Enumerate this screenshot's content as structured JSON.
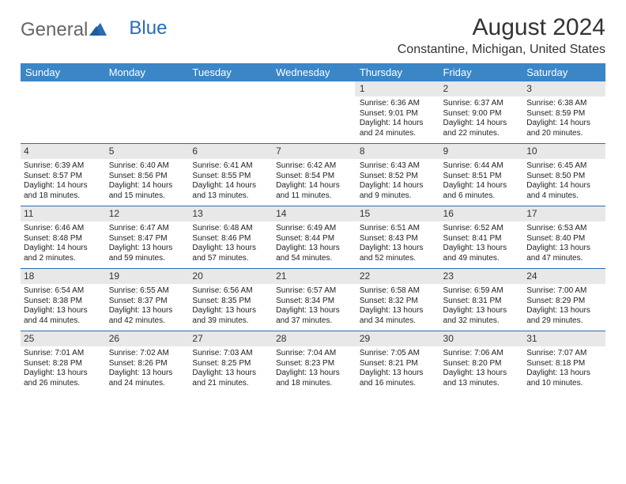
{
  "brand": {
    "word1": "General",
    "word2": "Blue"
  },
  "title": "August 2024",
  "location": "Constantine, Michigan, United States",
  "colors": {
    "header_bg": "#3b86c7",
    "header_text": "#ffffff",
    "rule": "#2a6cb3",
    "daynum_bg": "#e8e8e8",
    "text": "#222222",
    "brand_gray": "#666666",
    "brand_blue": "#2a6cb3"
  },
  "weekdays": [
    "Sunday",
    "Monday",
    "Tuesday",
    "Wednesday",
    "Thursday",
    "Friday",
    "Saturday"
  ],
  "weeks": [
    [
      {
        "empty": true
      },
      {
        "empty": true
      },
      {
        "empty": true
      },
      {
        "empty": true
      },
      {
        "num": "1",
        "sunrise": "6:36 AM",
        "sunset": "9:01 PM",
        "daylight": "14 hours and 24 minutes."
      },
      {
        "num": "2",
        "sunrise": "6:37 AM",
        "sunset": "9:00 PM",
        "daylight": "14 hours and 22 minutes."
      },
      {
        "num": "3",
        "sunrise": "6:38 AM",
        "sunset": "8:59 PM",
        "daylight": "14 hours and 20 minutes."
      }
    ],
    [
      {
        "num": "4",
        "sunrise": "6:39 AM",
        "sunset": "8:57 PM",
        "daylight": "14 hours and 18 minutes."
      },
      {
        "num": "5",
        "sunrise": "6:40 AM",
        "sunset": "8:56 PM",
        "daylight": "14 hours and 15 minutes."
      },
      {
        "num": "6",
        "sunrise": "6:41 AM",
        "sunset": "8:55 PM",
        "daylight": "14 hours and 13 minutes."
      },
      {
        "num": "7",
        "sunrise": "6:42 AM",
        "sunset": "8:54 PM",
        "daylight": "14 hours and 11 minutes."
      },
      {
        "num": "8",
        "sunrise": "6:43 AM",
        "sunset": "8:52 PM",
        "daylight": "14 hours and 9 minutes."
      },
      {
        "num": "9",
        "sunrise": "6:44 AM",
        "sunset": "8:51 PM",
        "daylight": "14 hours and 6 minutes."
      },
      {
        "num": "10",
        "sunrise": "6:45 AM",
        "sunset": "8:50 PM",
        "daylight": "14 hours and 4 minutes."
      }
    ],
    [
      {
        "num": "11",
        "sunrise": "6:46 AM",
        "sunset": "8:48 PM",
        "daylight": "14 hours and 2 minutes."
      },
      {
        "num": "12",
        "sunrise": "6:47 AM",
        "sunset": "8:47 PM",
        "daylight": "13 hours and 59 minutes."
      },
      {
        "num": "13",
        "sunrise": "6:48 AM",
        "sunset": "8:46 PM",
        "daylight": "13 hours and 57 minutes."
      },
      {
        "num": "14",
        "sunrise": "6:49 AM",
        "sunset": "8:44 PM",
        "daylight": "13 hours and 54 minutes."
      },
      {
        "num": "15",
        "sunrise": "6:51 AM",
        "sunset": "8:43 PM",
        "daylight": "13 hours and 52 minutes."
      },
      {
        "num": "16",
        "sunrise": "6:52 AM",
        "sunset": "8:41 PM",
        "daylight": "13 hours and 49 minutes."
      },
      {
        "num": "17",
        "sunrise": "6:53 AM",
        "sunset": "8:40 PM",
        "daylight": "13 hours and 47 minutes."
      }
    ],
    [
      {
        "num": "18",
        "sunrise": "6:54 AM",
        "sunset": "8:38 PM",
        "daylight": "13 hours and 44 minutes."
      },
      {
        "num": "19",
        "sunrise": "6:55 AM",
        "sunset": "8:37 PM",
        "daylight": "13 hours and 42 minutes."
      },
      {
        "num": "20",
        "sunrise": "6:56 AM",
        "sunset": "8:35 PM",
        "daylight": "13 hours and 39 minutes."
      },
      {
        "num": "21",
        "sunrise": "6:57 AM",
        "sunset": "8:34 PM",
        "daylight": "13 hours and 37 minutes."
      },
      {
        "num": "22",
        "sunrise": "6:58 AM",
        "sunset": "8:32 PM",
        "daylight": "13 hours and 34 minutes."
      },
      {
        "num": "23",
        "sunrise": "6:59 AM",
        "sunset": "8:31 PM",
        "daylight": "13 hours and 32 minutes."
      },
      {
        "num": "24",
        "sunrise": "7:00 AM",
        "sunset": "8:29 PM",
        "daylight": "13 hours and 29 minutes."
      }
    ],
    [
      {
        "num": "25",
        "sunrise": "7:01 AM",
        "sunset": "8:28 PM",
        "daylight": "13 hours and 26 minutes."
      },
      {
        "num": "26",
        "sunrise": "7:02 AM",
        "sunset": "8:26 PM",
        "daylight": "13 hours and 24 minutes."
      },
      {
        "num": "27",
        "sunrise": "7:03 AM",
        "sunset": "8:25 PM",
        "daylight": "13 hours and 21 minutes."
      },
      {
        "num": "28",
        "sunrise": "7:04 AM",
        "sunset": "8:23 PM",
        "daylight": "13 hours and 18 minutes."
      },
      {
        "num": "29",
        "sunrise": "7:05 AM",
        "sunset": "8:21 PM",
        "daylight": "13 hours and 16 minutes."
      },
      {
        "num": "30",
        "sunrise": "7:06 AM",
        "sunset": "8:20 PM",
        "daylight": "13 hours and 13 minutes."
      },
      {
        "num": "31",
        "sunrise": "7:07 AM",
        "sunset": "8:18 PM",
        "daylight": "13 hours and 10 minutes."
      }
    ]
  ],
  "labels": {
    "sunrise": "Sunrise: ",
    "sunset": "Sunset: ",
    "daylight": "Daylight: "
  }
}
